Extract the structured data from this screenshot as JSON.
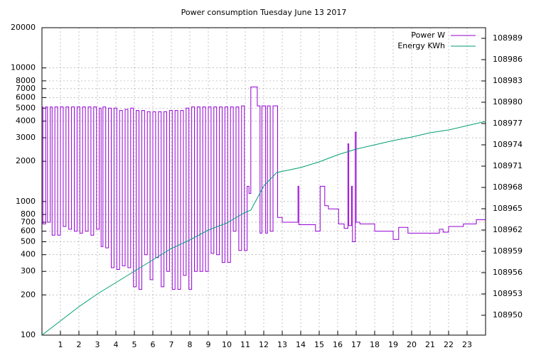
{
  "chart_data": {
    "type": "line",
    "title": "Power consumption Tuesday June 13 2017",
    "xlim": [
      0,
      24
    ],
    "xticks": [
      1,
      2,
      3,
      4,
      5,
      6,
      7,
      8,
      9,
      10,
      11,
      12,
      13,
      14,
      15,
      16,
      17,
      18,
      19,
      20,
      21,
      22,
      23
    ],
    "ylim": [
      100,
      20000
    ],
    "log_y": true,
    "yticks": [
      100,
      200,
      300,
      400,
      500,
      600,
      700,
      800,
      1000,
      2000,
      3000,
      4000,
      5000,
      6000,
      7000,
      8000,
      10000,
      20000
    ],
    "y2lim": [
      108947.2,
      108990.5
    ],
    "y2ticks": [
      108950,
      108953,
      108956,
      108959,
      108962,
      108965,
      108968,
      108971,
      108974,
      108977,
      108980,
      108983,
      108986,
      108989
    ],
    "grid": true,
    "legend": "top-right",
    "series": [
      {
        "name": "Power W",
        "color": "#9400d3",
        "step": true,
        "x": [
          0,
          0.05,
          0.2,
          0.3,
          0.45,
          0.55,
          0.7,
          0.85,
          1.0,
          1.15,
          1.3,
          1.45,
          1.6,
          1.75,
          1.9,
          2.05,
          2.2,
          2.35,
          2.5,
          2.65,
          2.8,
          2.95,
          3.1,
          3.2,
          3.3,
          3.45,
          3.6,
          3.75,
          3.9,
          4.05,
          4.2,
          4.35,
          4.5,
          4.65,
          4.8,
          4.95,
          5.1,
          5.25,
          5.4,
          5.55,
          5.7,
          5.85,
          6.0,
          6.15,
          6.3,
          6.45,
          6.6,
          6.75,
          6.9,
          7.05,
          7.2,
          7.35,
          7.5,
          7.65,
          7.8,
          7.95,
          8.1,
          8.25,
          8.4,
          8.55,
          8.7,
          8.85,
          9.0,
          9.15,
          9.3,
          9.45,
          9.6,
          9.75,
          9.9,
          10.05,
          10.2,
          10.35,
          10.5,
          10.65,
          10.8,
          10.95,
          11.1,
          11.2,
          11.3,
          11.65,
          11.8,
          11.9,
          12.1,
          12.2,
          12.35,
          12.5,
          12.75,
          13.0,
          13.85,
          13.9,
          14.8,
          15.05,
          15.3,
          15.5,
          16.05,
          16.35,
          16.55,
          16.6,
          16.75,
          16.8,
          16.95,
          17.0,
          17.2,
          18.0,
          19.0,
          19.3,
          19.8,
          21.5,
          21.7,
          22.0,
          22.8,
          23.5
        ],
        "values": [
          5100,
          680,
          5100,
          700,
          5100,
          560,
          5100,
          560,
          5100,
          650,
          5100,
          620,
          5100,
          600,
          5100,
          580,
          5100,
          600,
          5100,
          560,
          5100,
          620,
          5000,
          460,
          5100,
          450,
          5000,
          320,
          5000,
          310,
          4800,
          330,
          4900,
          320,
          5000,
          230,
          4800,
          220,
          4800,
          400,
          4700,
          260,
          4700,
          380,
          4700,
          230,
          4700,
          300,
          4800,
          220,
          4800,
          220,
          4800,
          280,
          5000,
          220,
          5100,
          300,
          5100,
          300,
          5100,
          300,
          5100,
          410,
          5100,
          400,
          5100,
          350,
          5100,
          350,
          5100,
          600,
          5100,
          430,
          5200,
          430,
          1300,
          1150,
          7200,
          5200,
          580,
          5200,
          580,
          5200,
          600,
          5200,
          760,
          700,
          1300,
          670,
          600,
          1300,
          930,
          880,
          680,
          630,
          2700,
          660,
          1300,
          500,
          3300,
          700,
          680,
          600,
          520,
          640,
          580,
          620,
          590,
          650,
          680,
          730
        ]
      },
      {
        "name": "Energy KWh",
        "color": "#009e73",
        "axis": "y2",
        "x": [
          0,
          1,
          2,
          3,
          4,
          5,
          6,
          7,
          8,
          9,
          10,
          11,
          11.3,
          12,
          12.7,
          14,
          15,
          16,
          17,
          18,
          19,
          20,
          21,
          22,
          23,
          24
        ],
        "values": [
          108947.2,
          108949.2,
          108951.2,
          108953,
          108954.6,
          108956.2,
          108957.8,
          108959.4,
          108960.6,
          108962,
          108963,
          108964.5,
          108964.8,
          108968.2,
          108970.1,
          108970.8,
          108971.6,
          108972.6,
          108973.4,
          108974,
          108974.6,
          108975.1,
          108975.7,
          108976.1,
          108976.7,
          108977.3
        ]
      }
    ]
  }
}
